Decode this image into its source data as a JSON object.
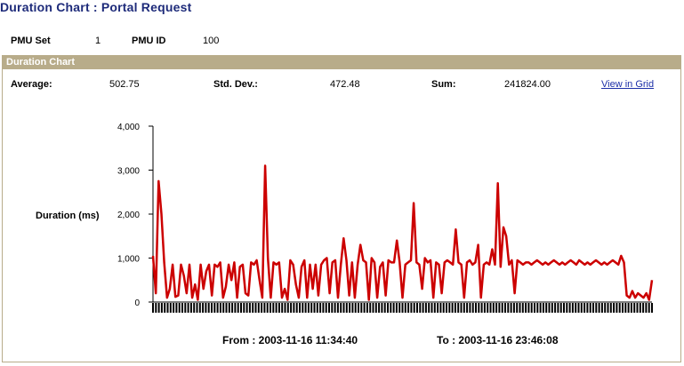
{
  "page": {
    "title": "Duration Chart : Portal Request"
  },
  "pmu": {
    "set_label": "PMU Set",
    "set_value": "1",
    "id_label": "PMU ID",
    "id_value": "100"
  },
  "panel": {
    "title": "Duration Chart"
  },
  "stats": {
    "average_label": "Average:",
    "average_value": "502.75",
    "stddev_label": "Std. Dev.:",
    "stddev_value": "472.48",
    "sum_label": "Sum:",
    "sum_value": "241824.00",
    "view_link": "View in Grid"
  },
  "range": {
    "from": "From : 2003-11-16 11:34:40",
    "to": "To : 2003-11-16 23:46:08"
  },
  "colors": {
    "series": "#cc0000",
    "title": "#1e2b7a",
    "panel_header": "#b8ac8a",
    "link": "#1c2fa8"
  },
  "chart_data": {
    "type": "line",
    "title": "",
    "xlabel": "",
    "ylabel": "Duration (ms)",
    "ylim": [
      0,
      4000
    ],
    "yticks": [
      "0",
      "1,000",
      "2,000",
      "3,000",
      "4,000"
    ],
    "x_start": "2003-11-16 11:34:40",
    "x_end": "2003-11-16 23:46:08",
    "series": [
      {
        "values": [
          1050,
          200,
          2750,
          2000,
          900,
          100,
          300,
          850,
          120,
          150,
          850,
          600,
          200,
          850,
          100,
          400,
          50,
          850,
          300,
          700,
          850,
          150,
          850,
          800,
          900,
          100,
          350,
          850,
          500,
          900,
          100,
          800,
          850,
          200,
          150,
          900,
          850,
          950,
          500,
          100,
          3100,
          1000,
          100,
          900,
          850,
          900,
          100,
          300,
          50,
          950,
          850,
          400,
          100,
          800,
          950,
          100,
          850,
          300,
          850,
          150,
          850,
          950,
          1000,
          200,
          900,
          950,
          100,
          850,
          1450,
          950,
          150,
          900,
          100,
          850,
          1300,
          950,
          900,
          50,
          1000,
          900,
          100,
          800,
          900,
          150,
          950,
          900,
          900,
          1400,
          900,
          100,
          850,
          900,
          950,
          2250,
          900,
          850,
          300,
          1000,
          900,
          950,
          100,
          900,
          850,
          200,
          900,
          950,
          900,
          850,
          1650,
          900,
          850,
          100,
          900,
          950,
          850,
          900,
          1300,
          100,
          850,
          900,
          850,
          1200,
          850,
          2700,
          800,
          1700,
          1500,
          850,
          950,
          200,
          950,
          900,
          850,
          900,
          900,
          850,
          900,
          950,
          900,
          850,
          900,
          850,
          900,
          950,
          900,
          850,
          900,
          850,
          900,
          950,
          900,
          850,
          950,
          900,
          850,
          900,
          850,
          900,
          950,
          900,
          850,
          900,
          850,
          900,
          950,
          900,
          850,
          1050,
          900,
          150,
          100,
          250,
          100,
          200,
          150,
          100,
          200,
          50,
          500
        ]
      }
    ]
  }
}
